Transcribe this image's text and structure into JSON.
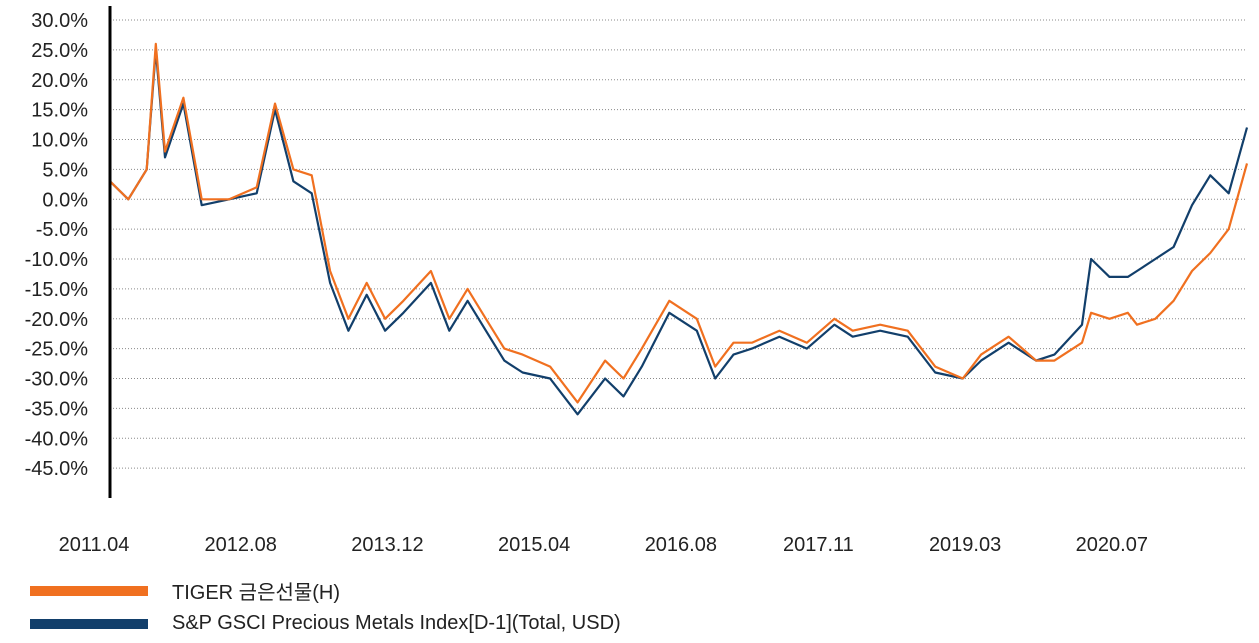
{
  "chart_data": {
    "type": "line",
    "title": "",
    "xlabel": "",
    "ylabel": "",
    "x_ticks": [
      "2011.04",
      "2012.08",
      "2013.12",
      "2015.04",
      "2016.08",
      "2017.11",
      "2019.03",
      "2020.07"
    ],
    "y_ticks": [
      "30.0%",
      "25.0%",
      "20.0%",
      "15.0%",
      "10.0%",
      "5.0%",
      "0.0%",
      "-5.0%",
      "-10.0%",
      "-15.0%",
      "-20.0%",
      "-25.0%",
      "-30.0%",
      "-35.0%",
      "-40.0%",
      "-45.0%"
    ],
    "ylim": [
      -50,
      30
    ],
    "xlim": [
      "2011.04",
      "2021.08"
    ],
    "grid": "horizontal dotted",
    "legend_position": "bottom-left",
    "series": [
      {
        "name": "TIGER 금은선물(H)",
        "color": "#F07020",
        "x": [
          "2011.04",
          "2011.06",
          "2011.08",
          "2011.09",
          "2011.10",
          "2011.12",
          "2012.02",
          "2012.05",
          "2012.08",
          "2012.10",
          "2012.12",
          "2013.02",
          "2013.04",
          "2013.06",
          "2013.08",
          "2013.10",
          "2013.12",
          "2014.03",
          "2014.05",
          "2014.07",
          "2014.09",
          "2014.11",
          "2015.01",
          "2015.04",
          "2015.07",
          "2015.10",
          "2015.12",
          "2016.02",
          "2016.05",
          "2016.08",
          "2016.10",
          "2016.12",
          "2017.02",
          "2017.05",
          "2017.08",
          "2017.11",
          "2018.01",
          "2018.04",
          "2018.07",
          "2018.10",
          "2019.01",
          "2019.03",
          "2019.06",
          "2019.09",
          "2019.11",
          "2020.02",
          "2020.03",
          "2020.05",
          "2020.07",
          "2020.08",
          "2020.10",
          "2020.12",
          "2021.02",
          "2021.04",
          "2021.06",
          "2021.08"
        ],
        "values": [
          3,
          0,
          5,
          26,
          8,
          17,
          0,
          0,
          2,
          16,
          5,
          4,
          -12,
          -20,
          -14,
          -20,
          -17,
          -12,
          -20,
          -15,
          -20,
          -25,
          -26,
          -28,
          -34,
          -27,
          -30,
          -25,
          -17,
          -20,
          -28,
          -24,
          -24,
          -22,
          -24,
          -20,
          -22,
          -21,
          -22,
          -28,
          -30,
          -26,
          -23,
          -27,
          -27,
          -24,
          -19,
          -20,
          -19,
          -21,
          -20,
          -17,
          -12,
          -9,
          -5,
          6
        ]
      },
      {
        "name": "S&P GSCI Precious Metals Index[D-1](Total, USD)",
        "color": "#123F6B",
        "x": [
          "2011.04",
          "2011.06",
          "2011.08",
          "2011.09",
          "2011.10",
          "2011.12",
          "2012.02",
          "2012.05",
          "2012.08",
          "2012.10",
          "2012.12",
          "2013.02",
          "2013.04",
          "2013.06",
          "2013.08",
          "2013.10",
          "2013.12",
          "2014.03",
          "2014.05",
          "2014.07",
          "2014.09",
          "2014.11",
          "2015.01",
          "2015.04",
          "2015.07",
          "2015.10",
          "2015.12",
          "2016.02",
          "2016.05",
          "2016.08",
          "2016.10",
          "2016.12",
          "2017.02",
          "2017.05",
          "2017.08",
          "2017.11",
          "2018.01",
          "2018.04",
          "2018.07",
          "2018.10",
          "2019.01",
          "2019.03",
          "2019.06",
          "2019.09",
          "2019.11",
          "2020.02",
          "2020.03",
          "2020.05",
          "2020.07",
          "2020.08",
          "2020.10",
          "2020.12",
          "2021.02",
          "2021.04",
          "2021.06",
          "2021.08"
        ],
        "values": [
          3,
          0,
          5,
          25,
          7,
          16,
          -1,
          0,
          1,
          15,
          3,
          1,
          -14,
          -22,
          -16,
          -22,
          -19,
          -14,
          -22,
          -17,
          -22,
          -27,
          -29,
          -30,
          -36,
          -30,
          -33,
          -28,
          -19,
          -22,
          -30,
          -26,
          -25,
          -23,
          -25,
          -21,
          -23,
          -22,
          -23,
          -29,
          -30,
          -27,
          -24,
          -27,
          -26,
          -21,
          -10,
          -13,
          -13,
          -12,
          -10,
          -8,
          -1,
          4,
          1,
          12
        ]
      }
    ]
  }
}
